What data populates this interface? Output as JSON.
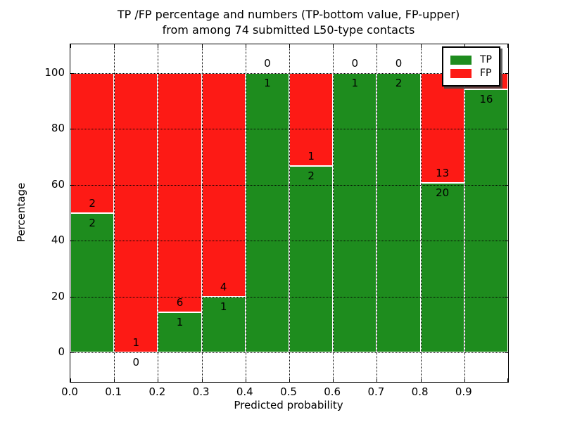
{
  "figure": {
    "title_line1": "TP /FP percentage and numbers (TP-bottom value, FP-upper)",
    "title_line2": "from among 74 submitted L50-type contacts",
    "xlabel": "Predicted probability",
    "ylabel": "Percentage"
  },
  "legend": {
    "position": "upper right",
    "items": [
      {
        "label": "TP",
        "color": "#1e8c1e"
      },
      {
        "label": "FP",
        "color": "#fd1a15"
      }
    ]
  },
  "chart_data": {
    "type": "bar",
    "stacked": true,
    "title": "TP /FP percentage and numbers (TP-bottom value, FP-upper) from among 74 submitted L50-type contacts",
    "xlabel": "Predicted probability",
    "ylabel": "Percentage",
    "total_contacts": 74,
    "x_tick_labels": [
      "0.0",
      "0.1",
      "0.2",
      "0.3",
      "0.4",
      "0.5",
      "0.6",
      "0.7",
      "0.8",
      "0.9"
    ],
    "y_ticks": [
      0,
      20,
      40,
      60,
      80,
      100
    ],
    "xlim": [
      0.0,
      1.0
    ],
    "ylim_visible": [
      0,
      100
    ],
    "grid": true,
    "bin_width": 0.1,
    "colors": {
      "tp": "#1e8c1e",
      "fp": "#fd1a15"
    },
    "bins": [
      {
        "x_start": 0.0,
        "x_end": 0.1,
        "tp": 2,
        "fp": 2,
        "tp_pct": 50.0,
        "fp_pct": 50.0
      },
      {
        "x_start": 0.1,
        "x_end": 0.2,
        "tp": 0,
        "fp": 1,
        "tp_pct": 0.0,
        "fp_pct": 100.0
      },
      {
        "x_start": 0.2,
        "x_end": 0.3,
        "tp": 1,
        "fp": 6,
        "tp_pct": 14.29,
        "fp_pct": 85.71
      },
      {
        "x_start": 0.3,
        "x_end": 0.4,
        "tp": 1,
        "fp": 4,
        "tp_pct": 20.0,
        "fp_pct": 80.0
      },
      {
        "x_start": 0.4,
        "x_end": 0.5,
        "tp": 1,
        "fp": 0,
        "tp_pct": 100.0,
        "fp_pct": 0.0
      },
      {
        "x_start": 0.5,
        "x_end": 0.6,
        "tp": 2,
        "fp": 1,
        "tp_pct": 66.67,
        "fp_pct": 33.33
      },
      {
        "x_start": 0.6,
        "x_end": 0.7,
        "tp": 1,
        "fp": 0,
        "tp_pct": 100.0,
        "fp_pct": 0.0
      },
      {
        "x_start": 0.7,
        "x_end": 0.8,
        "tp": 2,
        "fp": 0,
        "tp_pct": 100.0,
        "fp_pct": 0.0
      },
      {
        "x_start": 0.8,
        "x_end": 0.9,
        "tp": 20,
        "fp": 13,
        "tp_pct": 60.61,
        "fp_pct": 39.39
      },
      {
        "x_start": 0.9,
        "x_end": 1.0,
        "tp": 16,
        "fp": 1,
        "tp_pct": 94.12,
        "fp_pct": 5.88
      }
    ],
    "series": [
      {
        "name": "TP",
        "color": "#1e8c1e",
        "counts": [
          2,
          0,
          1,
          1,
          1,
          2,
          1,
          2,
          20,
          16
        ],
        "values_pct": [
          50.0,
          0.0,
          14.29,
          20.0,
          100.0,
          66.67,
          100.0,
          100.0,
          60.61,
          94.12
        ]
      },
      {
        "name": "FP",
        "color": "#fd1a15",
        "counts": [
          2,
          1,
          6,
          4,
          0,
          1,
          0,
          0,
          13,
          1
        ],
        "values_pct": [
          50.0,
          100.0,
          85.71,
          80.0,
          0.0,
          33.33,
          0.0,
          0.0,
          39.39,
          5.88
        ]
      }
    ]
  }
}
